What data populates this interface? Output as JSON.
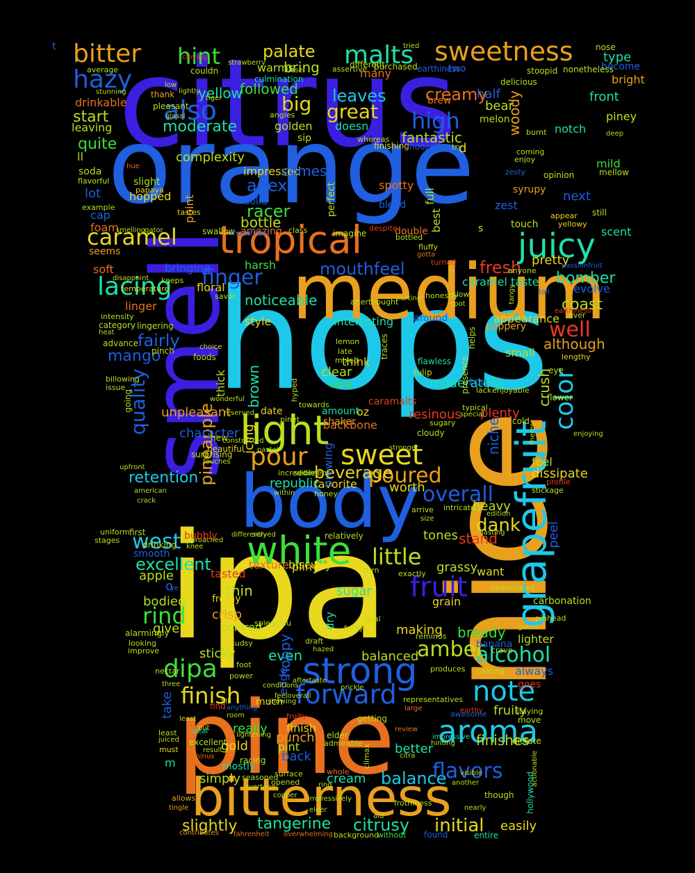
{
  "colors": {
    "background": "#000000",
    "blue": "#1f5fe0",
    "indigo": "#3a1fe0",
    "cyan": "#1ec8e8",
    "teal": "#1ee0a8",
    "green": "#3ae03a",
    "lime": "#b8e020",
    "yellow": "#e8d81e",
    "amber": "#e8a01e",
    "orange": "#e8701e",
    "red": "#e83a1e"
  },
  "words": [
    "citrus",
    "orange",
    "smell",
    "hops",
    "ipa",
    "nice",
    "medium",
    "pine",
    "body",
    "bitterness",
    "tropical",
    "strong",
    "juicy",
    "light",
    "white",
    "grapefruit",
    "aroma",
    "malts",
    "sweetness",
    "bitter",
    "hint",
    "hazy",
    "also",
    "caramel",
    "lacing",
    "finger",
    "pour",
    "sweet",
    "dipa",
    "finish",
    "forward",
    "note",
    "color",
    "fruit",
    "alcohol",
    "amber",
    "little",
    "west",
    "excellent",
    "rind",
    "balance",
    "flavors",
    "tangerine",
    "slightly",
    "citrusy",
    "initial",
    "easily",
    "creamy",
    "high",
    "fantastic",
    "great",
    "big",
    "leaves",
    "palate",
    "bring",
    "followed",
    "moderate",
    "apex",
    "racer",
    "bottle",
    "mouthfeel",
    "fresh",
    "pretty",
    "bomber",
    "coast",
    "well",
    "although",
    "mango",
    "fairly",
    "quality",
    "pineapple",
    "retention",
    "overall",
    "poured",
    "republic",
    "dank",
    "heavy",
    "stand",
    "tones",
    "grassy",
    "thin",
    "bodied",
    "crisp",
    "sugar",
    "bready",
    "banana",
    "lighter",
    "sticky",
    "even",
    "balanced",
    "making",
    "hoppy",
    "really",
    "gold",
    "punch",
    "pint",
    "back",
    "better",
    "cream",
    "simply",
    "mostly",
    "finishes",
    "fruity",
    "staying",
    "always",
    "take",
    "quite",
    "start",
    "leaving",
    "soda",
    "lot",
    "cap",
    "foam",
    "soft",
    "seems",
    "bringing",
    "linger",
    "noticeable",
    "style",
    "interesting",
    "around",
    "appearance",
    "peppery",
    "ever",
    "evolve",
    "yellow",
    "bear",
    "half",
    "front",
    "bright",
    "type",
    "nose",
    "become",
    "stoopid",
    "piney",
    "mild",
    "next",
    "syrupy",
    "zest",
    "touch",
    "scent",
    "still",
    "deep",
    "mellow",
    "woody",
    "melon",
    "notch",
    "doesn",
    "golden",
    "sip",
    "brew",
    "warms",
    "many",
    "two",
    "nonetheless",
    "delicious",
    "opinion",
    "hopped",
    "slight",
    "point",
    "complexity",
    "ll",
    "solid",
    "impressed",
    "comes",
    "spotty",
    "blend",
    "double",
    "best",
    "full",
    "perfect",
    "amazing",
    "harsh",
    "floral",
    "unpleasant",
    "character",
    "beautiful",
    "beverage",
    "oz",
    "amount",
    "date",
    "backbone",
    "resinous",
    "cloudy",
    "niche",
    "plenty",
    "moderately",
    "tulip",
    "crush",
    "clear",
    "lace",
    "think",
    "ton",
    "small",
    "dissipate",
    "feel",
    "peel",
    "profile",
    "stickage",
    "shaker",
    "caramalts",
    "worth",
    "favorite",
    "brewing",
    "new",
    "icing",
    "brown",
    "thick",
    "lingering",
    "caramel taste",
    "d",
    "o",
    "m",
    "t",
    "s",
    "edge",
    "dry",
    "colored",
    "give",
    "grain",
    "carbonation",
    "want",
    "biscuity",
    "texture",
    "tasted",
    "frothy",
    "bubbly",
    "smooth",
    "drinking",
    "ye",
    "apple",
    "pliny",
    "excellent",
    "finish",
    "much",
    "find",
    "anything",
    "least",
    "found",
    "entire",
    "contributes",
    "overwhelming",
    "fahrenheit",
    "background",
    "without",
    "frothiness",
    "allows",
    "tingle",
    "must",
    "minus",
    "ideal",
    "racing",
    "elder",
    "admirable",
    "climax",
    "citra",
    "hollywood",
    "dictate",
    "impressive",
    "hinting",
    "review",
    "fruity",
    "getting",
    "large",
    "awesome",
    "earthy",
    "goes",
    "move",
    "cloying",
    "couldn",
    "strawberry",
    "culmination",
    "different",
    "purchased",
    "earthiness",
    "tried",
    "assertive",
    "close",
    "average",
    "stunning",
    "drinkable",
    "thank",
    "pleasant",
    "glassl",
    "low",
    "lightly",
    "tiger",
    "angies",
    "whereas",
    "finishing",
    "modestly",
    "try",
    "coming",
    "burnt",
    "enjoy",
    "zesty",
    "appear",
    "yellowy",
    "hue",
    "flavorful",
    "papaya",
    "example",
    "tastes",
    "smelling",
    "gator",
    "swallow",
    "mouthfeel",
    "class",
    "imagine",
    "despite",
    "bottled",
    "fluffy",
    "gotta",
    "turned",
    "anyone",
    "passionfruit",
    "disappoint",
    "temperature",
    "keeps",
    "savor",
    "afterthought",
    "hurting",
    "honestly",
    "slow",
    "spot",
    "tangy",
    "tall",
    "earthiness",
    "intensity",
    "heat",
    "category",
    "advance",
    "pinch",
    "choice",
    "foods",
    "lemon",
    "late",
    "mixed",
    "traces",
    "flawless",
    "presence",
    "helps",
    "lack",
    "enjoyable",
    "flower",
    "typical",
    "special",
    "sugary",
    "cold",
    "theres",
    "eye",
    "lengthy",
    "enjoying",
    "wonderful",
    "reserved",
    "constructed",
    "pinet",
    "hyped",
    "towards",
    "going",
    "billowing",
    "issue",
    "uniform",
    "stages",
    "upfront",
    "surprising",
    "touches",
    "pastel",
    "stronger",
    "incredible",
    "sediment",
    "within",
    "honey",
    "american",
    "crack",
    "first",
    "knee",
    "approached",
    "differently",
    "served",
    "relatively",
    "arrive",
    "size",
    "intricately",
    "lasting",
    "edition",
    "turn",
    "exactly",
    "carbonated",
    "pinhead",
    "alarmingly",
    "looking",
    "improve",
    "nectar",
    "sudsy",
    "spiegelau",
    "draft",
    "hazed",
    "funky",
    "local",
    "reminds",
    "crave",
    "guess",
    "produces",
    "coating",
    "showing",
    "prickle",
    "feeloverall",
    "representatives",
    "conditions",
    "aftertaste",
    "power",
    "foot",
    "three",
    "fill",
    "room",
    "put",
    "lightening",
    "least",
    "juiced",
    "result",
    "nearly",
    "aid",
    "copper",
    "elder",
    "impressively",
    "overtone",
    "seasoned",
    "opened",
    "surface",
    "whole",
    "ring",
    "another",
    "visible",
    "though",
    "actionable",
    "definitely",
    "representation",
    "man",
    "clean"
  ]
}
